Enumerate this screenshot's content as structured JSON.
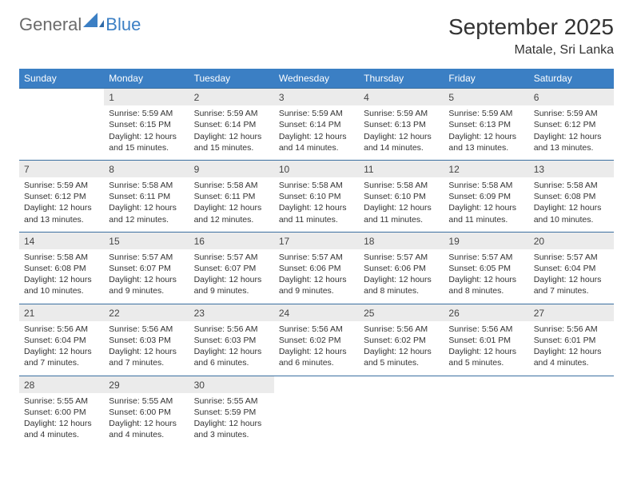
{
  "logo": {
    "word1": "General",
    "word2": "Blue"
  },
  "title": "September 2025",
  "location": "Matale, Sri Lanka",
  "colors": {
    "header_bg": "#3b7fc4",
    "header_text": "#ffffff",
    "daynum_bg": "#ebebeb",
    "row_divider": "#3b6fa0",
    "body_text": "#333333",
    "logo_gray": "#6b6b6b",
    "logo_blue": "#3b7fc4",
    "page_bg": "#ffffff"
  },
  "typography": {
    "title_fontsize": 28,
    "location_fontsize": 16,
    "dayheader_fontsize": 12,
    "daynum_fontsize": 12,
    "cell_fontsize": 10.5
  },
  "day_headers": [
    "Sunday",
    "Monday",
    "Tuesday",
    "Wednesday",
    "Thursday",
    "Friday",
    "Saturday"
  ],
  "weeks": [
    {
      "nums": [
        "",
        "1",
        "2",
        "3",
        "4",
        "5",
        "6"
      ],
      "cells": [
        null,
        {
          "sunrise": "Sunrise: 5:59 AM",
          "sunset": "Sunset: 6:15 PM",
          "daylight": "Daylight: 12 hours and 15 minutes."
        },
        {
          "sunrise": "Sunrise: 5:59 AM",
          "sunset": "Sunset: 6:14 PM",
          "daylight": "Daylight: 12 hours and 15 minutes."
        },
        {
          "sunrise": "Sunrise: 5:59 AM",
          "sunset": "Sunset: 6:14 PM",
          "daylight": "Daylight: 12 hours and 14 minutes."
        },
        {
          "sunrise": "Sunrise: 5:59 AM",
          "sunset": "Sunset: 6:13 PM",
          "daylight": "Daylight: 12 hours and 14 minutes."
        },
        {
          "sunrise": "Sunrise: 5:59 AM",
          "sunset": "Sunset: 6:13 PM",
          "daylight": "Daylight: 12 hours and 13 minutes."
        },
        {
          "sunrise": "Sunrise: 5:59 AM",
          "sunset": "Sunset: 6:12 PM",
          "daylight": "Daylight: 12 hours and 13 minutes."
        }
      ]
    },
    {
      "nums": [
        "7",
        "8",
        "9",
        "10",
        "11",
        "12",
        "13"
      ],
      "cells": [
        {
          "sunrise": "Sunrise: 5:59 AM",
          "sunset": "Sunset: 6:12 PM",
          "daylight": "Daylight: 12 hours and 13 minutes."
        },
        {
          "sunrise": "Sunrise: 5:58 AM",
          "sunset": "Sunset: 6:11 PM",
          "daylight": "Daylight: 12 hours and 12 minutes."
        },
        {
          "sunrise": "Sunrise: 5:58 AM",
          "sunset": "Sunset: 6:11 PM",
          "daylight": "Daylight: 12 hours and 12 minutes."
        },
        {
          "sunrise": "Sunrise: 5:58 AM",
          "sunset": "Sunset: 6:10 PM",
          "daylight": "Daylight: 12 hours and 11 minutes."
        },
        {
          "sunrise": "Sunrise: 5:58 AM",
          "sunset": "Sunset: 6:10 PM",
          "daylight": "Daylight: 12 hours and 11 minutes."
        },
        {
          "sunrise": "Sunrise: 5:58 AM",
          "sunset": "Sunset: 6:09 PM",
          "daylight": "Daylight: 12 hours and 11 minutes."
        },
        {
          "sunrise": "Sunrise: 5:58 AM",
          "sunset": "Sunset: 6:08 PM",
          "daylight": "Daylight: 12 hours and 10 minutes."
        }
      ]
    },
    {
      "nums": [
        "14",
        "15",
        "16",
        "17",
        "18",
        "19",
        "20"
      ],
      "cells": [
        {
          "sunrise": "Sunrise: 5:58 AM",
          "sunset": "Sunset: 6:08 PM",
          "daylight": "Daylight: 12 hours and 10 minutes."
        },
        {
          "sunrise": "Sunrise: 5:57 AM",
          "sunset": "Sunset: 6:07 PM",
          "daylight": "Daylight: 12 hours and 9 minutes."
        },
        {
          "sunrise": "Sunrise: 5:57 AM",
          "sunset": "Sunset: 6:07 PM",
          "daylight": "Daylight: 12 hours and 9 minutes."
        },
        {
          "sunrise": "Sunrise: 5:57 AM",
          "sunset": "Sunset: 6:06 PM",
          "daylight": "Daylight: 12 hours and 9 minutes."
        },
        {
          "sunrise": "Sunrise: 5:57 AM",
          "sunset": "Sunset: 6:06 PM",
          "daylight": "Daylight: 12 hours and 8 minutes."
        },
        {
          "sunrise": "Sunrise: 5:57 AM",
          "sunset": "Sunset: 6:05 PM",
          "daylight": "Daylight: 12 hours and 8 minutes."
        },
        {
          "sunrise": "Sunrise: 5:57 AM",
          "sunset": "Sunset: 6:04 PM",
          "daylight": "Daylight: 12 hours and 7 minutes."
        }
      ]
    },
    {
      "nums": [
        "21",
        "22",
        "23",
        "24",
        "25",
        "26",
        "27"
      ],
      "cells": [
        {
          "sunrise": "Sunrise: 5:56 AM",
          "sunset": "Sunset: 6:04 PM",
          "daylight": "Daylight: 12 hours and 7 minutes."
        },
        {
          "sunrise": "Sunrise: 5:56 AM",
          "sunset": "Sunset: 6:03 PM",
          "daylight": "Daylight: 12 hours and 7 minutes."
        },
        {
          "sunrise": "Sunrise: 5:56 AM",
          "sunset": "Sunset: 6:03 PM",
          "daylight": "Daylight: 12 hours and 6 minutes."
        },
        {
          "sunrise": "Sunrise: 5:56 AM",
          "sunset": "Sunset: 6:02 PM",
          "daylight": "Daylight: 12 hours and 6 minutes."
        },
        {
          "sunrise": "Sunrise: 5:56 AM",
          "sunset": "Sunset: 6:02 PM",
          "daylight": "Daylight: 12 hours and 5 minutes."
        },
        {
          "sunrise": "Sunrise: 5:56 AM",
          "sunset": "Sunset: 6:01 PM",
          "daylight": "Daylight: 12 hours and 5 minutes."
        },
        {
          "sunrise": "Sunrise: 5:56 AM",
          "sunset": "Sunset: 6:01 PM",
          "daylight": "Daylight: 12 hours and 4 minutes."
        }
      ]
    },
    {
      "nums": [
        "28",
        "29",
        "30",
        "",
        "",
        "",
        ""
      ],
      "cells": [
        {
          "sunrise": "Sunrise: 5:55 AM",
          "sunset": "Sunset: 6:00 PM",
          "daylight": "Daylight: 12 hours and 4 minutes."
        },
        {
          "sunrise": "Sunrise: 5:55 AM",
          "sunset": "Sunset: 6:00 PM",
          "daylight": "Daylight: 12 hours and 4 minutes."
        },
        {
          "sunrise": "Sunrise: 5:55 AM",
          "sunset": "Sunset: 5:59 PM",
          "daylight": "Daylight: 12 hours and 3 minutes."
        },
        null,
        null,
        null,
        null
      ]
    }
  ]
}
